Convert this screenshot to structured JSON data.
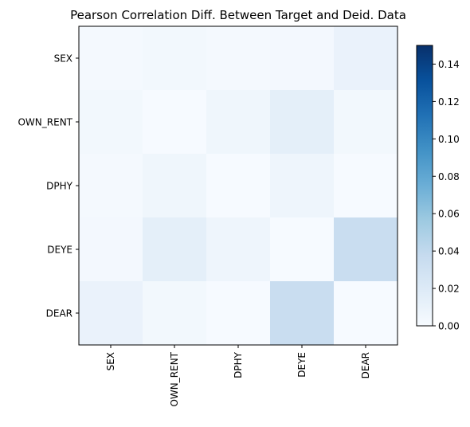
{
  "chart_data": {
    "type": "heatmap",
    "title": "Pearson Correlation Diff. Between Target and Deid. Data",
    "rows": [
      "SEX",
      "OWN_RENT",
      "DPHY",
      "DEYE",
      "DEAR"
    ],
    "columns": [
      "SEX",
      "OWN_RENT",
      "DPHY",
      "DEYE",
      "DEAR"
    ],
    "values": [
      [
        0.002,
        0.004,
        0.002,
        0.003,
        0.01
      ],
      [
        0.004,
        0.001,
        0.006,
        0.014,
        0.004
      ],
      [
        0.002,
        0.006,
        0.001,
        0.007,
        0.001
      ],
      [
        0.003,
        0.014,
        0.007,
        0.001,
        0.035
      ],
      [
        0.01,
        0.004,
        0.001,
        0.035,
        0.001
      ]
    ],
    "colorbar": {
      "min": 0.0,
      "max": 0.15,
      "ticks": [
        "0.00",
        "0.02",
        "0.04",
        "0.06",
        "0.08",
        "0.10",
        "0.12",
        "0.14"
      ],
      "colormap": "Blues"
    },
    "grid": false
  }
}
